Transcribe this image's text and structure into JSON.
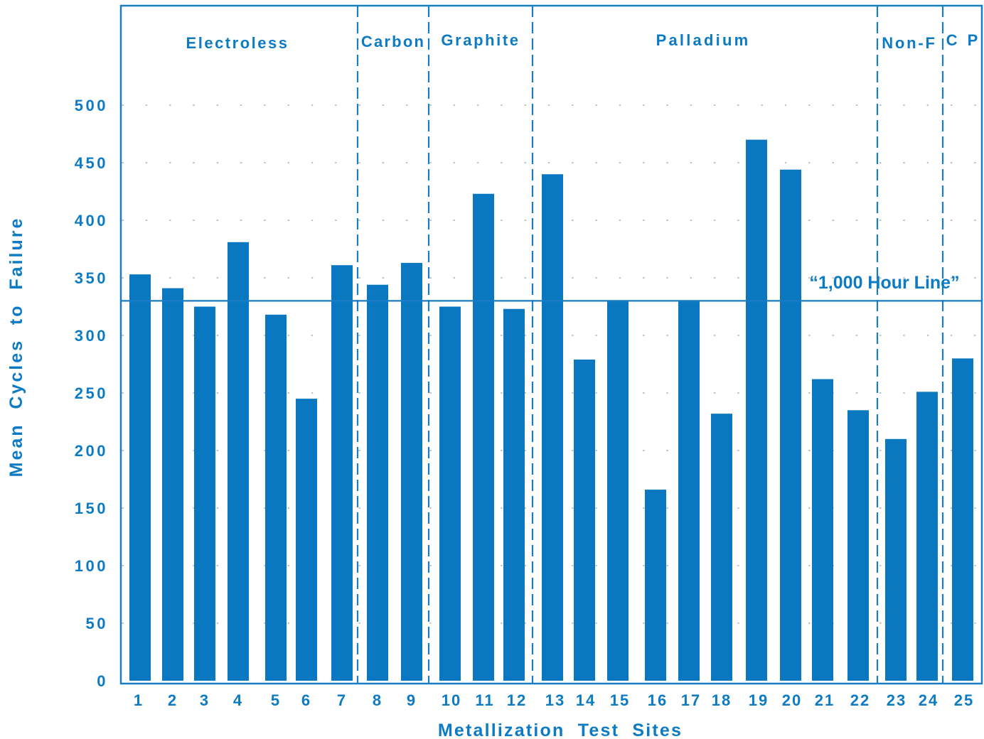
{
  "chart_data": {
    "type": "bar",
    "xlabel": "Metallization  Test  Sites",
    "ylabel": "Mean  Cycles  to  Failure",
    "ylim": [
      0,
      500
    ],
    "yticks": [
      0,
      50,
      100,
      150,
      200,
      250,
      300,
      350,
      400,
      450,
      500
    ],
    "grid": "dotted horizontal",
    "categories": [
      "1",
      "2",
      "3",
      "4",
      "5",
      "6",
      "7",
      "8",
      "9",
      "10",
      "11",
      "12",
      "13",
      "14",
      "15",
      "16",
      "17",
      "18",
      "19",
      "20",
      "21",
      "22",
      "23",
      "24",
      "25"
    ],
    "values": [
      353,
      341,
      325,
      381,
      318,
      245,
      361,
      344,
      363,
      325,
      423,
      323,
      440,
      279,
      330,
      166,
      330,
      232,
      470,
      444,
      262,
      235,
      210,
      251,
      280
    ],
    "groups": [
      {
        "label": "Electroless",
        "sites": [
          1,
          7
        ]
      },
      {
        "label": "Carbon",
        "sites": [
          8,
          9
        ]
      },
      {
        "label": "Graphite",
        "sites": [
          10,
          12
        ]
      },
      {
        "label": "Palladium",
        "sites": [
          13,
          22
        ]
      },
      {
        "label": "Non-F",
        "sites": [
          23,
          24
        ]
      },
      {
        "label": "C P",
        "sites": [
          25,
          25
        ]
      }
    ],
    "reference_line": {
      "value": 330,
      "label": "“1,000 Hour Line”"
    },
    "colors": {
      "bar": "#0a78c1",
      "text": "#0d7bc3",
      "frame": "#1a7dc4",
      "grid": "#9a9a9a"
    }
  }
}
